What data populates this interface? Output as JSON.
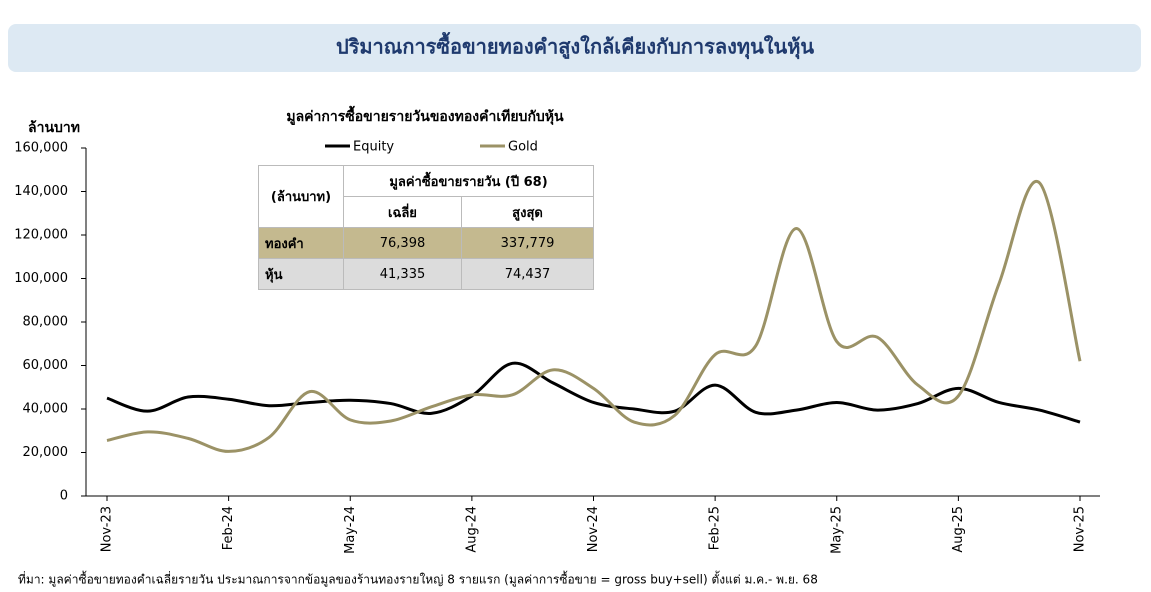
{
  "chart_data": {
    "type": "line",
    "title": "ปริมาณการซื้อขายทองคำสูงใกล้เคียงกับการลงทุนในหุ้น",
    "subtitle": "มูลค่าการซื้อขายรายวันของทองคำเทียบกับหุ้น",
    "y_label": "ล้านบาท",
    "source": "ที่มา: มูลค่าซื้อขายทองคำเฉลี่ยรายวัน ประมาณการจากข้อมูลของร้านทองรายใหญ่ 8 รายแรก (มูลค่าการซื้อขาย = gross buy+sell) ตั้งแต่ ม.ค.- พ.ย. 68",
    "categories": [
      "Nov-23",
      null,
      null,
      "Feb-24",
      null,
      null,
      "May-24",
      null,
      null,
      "Aug-24",
      null,
      null,
      "Nov-24",
      null,
      null,
      "Feb-25",
      null,
      null,
      "May-25",
      null,
      null,
      "Aug-25",
      null,
      null,
      "Nov-25"
    ],
    "series": [
      {
        "name": "Equity",
        "color": "#000000",
        "values": [
          45000,
          39000,
          45500,
          44500,
          41500,
          43000,
          44000,
          42500,
          38000,
          46000,
          61000,
          52000,
          43000,
          40000,
          39000,
          51000,
          38500,
          39500,
          43000,
          39500,
          42500,
          49500,
          43000,
          39500,
          34000
        ]
      },
      {
        "name": "Gold",
        "color": "#9b9266",
        "values": [
          25500,
          29500,
          26500,
          20500,
          27000,
          48000,
          35000,
          34500,
          41000,
          46500,
          46500,
          58000,
          49500,
          34000,
          37000,
          65000,
          69000,
          123000,
          71000,
          73000,
          51000,
          46000,
          97500,
          144000,
          62000
        ]
      }
    ],
    "ylim": [
      0,
      160000
    ],
    "yticks": [
      0,
      {
        "value": 20000,
        "label": "20,000"
      },
      {
        "value": 40000,
        "label": "40,000"
      },
      {
        "value": 60000,
        "label": "60,000"
      },
      {
        "value": 80000,
        "label": "80,000"
      },
      {
        "value": 100000,
        "label": "100,000"
      },
      {
        "value": 120000,
        "label": "120,000"
      },
      {
        "value": 140000,
        "label": "140,000"
      },
      {
        "value": 160000,
        "label": "160,000"
      }
    ],
    "grid": false,
    "legend": "top",
    "table": {
      "corner": "(ล้านบาท)",
      "group": "มูลค่าซื้อขายรายวัน (ปี 68)",
      "columns": [
        "เฉลี่ย",
        "สูงสุด"
      ],
      "rows": [
        [
          "ทองคำ",
          "76,398",
          "337,779"
        ],
        [
          "หุ้น",
          "41,335",
          "74,437"
        ]
      ]
    }
  }
}
